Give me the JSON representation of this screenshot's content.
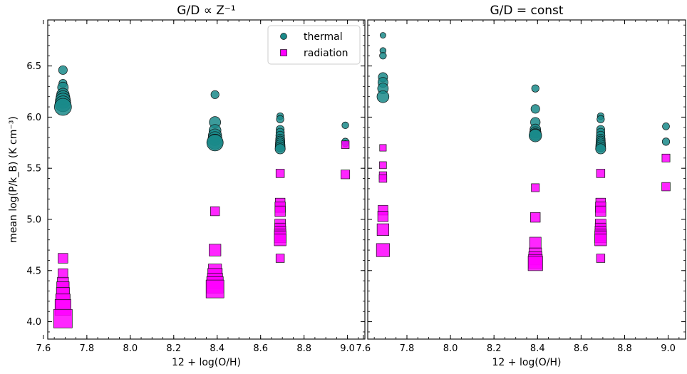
{
  "chart_data": [
    {
      "type": "scatter",
      "title": "G/D ∝ Z⁻¹",
      "xlabel": "12 + log(O/H)",
      "ylabel": "mean log(P/k_B) (K cm⁻³)",
      "xlim": [
        7.62,
        9.08
      ],
      "ylim": [
        3.83,
        6.95
      ],
      "xticks": [
        7.6,
        7.8,
        8.0,
        8.2,
        8.4,
        8.6,
        8.8,
        9.0
      ],
      "xtick_labels": [
        "7.6",
        "7.8",
        "8.0",
        "8.2",
        "8.4",
        "8.6",
        "8.8",
        "9.0"
      ],
      "yticks": [
        4.0,
        4.5,
        5.0,
        5.5,
        6.0,
        6.5
      ],
      "ytick_labels": [
        "4.0",
        "4.5",
        "5.0",
        "5.5",
        "6.0",
        "6.5"
      ],
      "legend": {
        "placement": "top-right",
        "entries": [
          "thermal",
          "radiation"
        ]
      },
      "series": [
        {
          "name": "thermal",
          "marker": "circle",
          "color": "#1a8a8a",
          "points": [
            {
              "x": 7.69,
              "y": 6.46,
              "s": 0.35
            },
            {
              "x": 7.69,
              "y": 6.33,
              "s": 0.3
            },
            {
              "x": 7.69,
              "y": 6.29,
              "s": 0.5
            },
            {
              "x": 7.69,
              "y": 6.22,
              "s": 0.65
            },
            {
              "x": 7.69,
              "y": 6.19,
              "s": 0.75
            },
            {
              "x": 7.69,
              "y": 6.16,
              "s": 0.85
            },
            {
              "x": 7.69,
              "y": 6.13,
              "s": 0.9
            },
            {
              "x": 7.69,
              "y": 6.1,
              "s": 1.0
            },
            {
              "x": 8.39,
              "y": 6.22,
              "s": 0.3
            },
            {
              "x": 8.39,
              "y": 5.95,
              "s": 0.55
            },
            {
              "x": 8.39,
              "y": 5.87,
              "s": 0.6
            },
            {
              "x": 8.39,
              "y": 5.82,
              "s": 0.7
            },
            {
              "x": 8.39,
              "y": 5.79,
              "s": 0.75
            },
            {
              "x": 8.39,
              "y": 5.76,
              "s": 0.85
            },
            {
              "x": 8.39,
              "y": 5.75,
              "s": 0.95
            },
            {
              "x": 8.69,
              "y": 6.01,
              "s": 0.2
            },
            {
              "x": 8.69,
              "y": 5.98,
              "s": 0.25
            },
            {
              "x": 8.69,
              "y": 5.88,
              "s": 0.3
            },
            {
              "x": 8.69,
              "y": 5.85,
              "s": 0.32
            },
            {
              "x": 8.69,
              "y": 5.82,
              "s": 0.34
            },
            {
              "x": 8.69,
              "y": 5.79,
              "s": 0.36
            },
            {
              "x": 8.69,
              "y": 5.77,
              "s": 0.38
            },
            {
              "x": 8.69,
              "y": 5.75,
              "s": 0.4
            },
            {
              "x": 8.69,
              "y": 5.73,
              "s": 0.42
            },
            {
              "x": 8.69,
              "y": 5.71,
              "s": 0.44
            },
            {
              "x": 8.69,
              "y": 5.69,
              "s": 0.46
            },
            {
              "x": 8.99,
              "y": 5.92,
              "s": 0.2
            },
            {
              "x": 8.99,
              "y": 5.76,
              "s": 0.22
            },
            {
              "x": 8.99,
              "y": 5.74,
              "s": 0.15
            }
          ]
        },
        {
          "name": "radiation",
          "marker": "square",
          "color": "#ff00ff",
          "points": [
            {
              "x": 7.69,
              "y": 4.62,
              "s": 0.35
            },
            {
              "x": 7.69,
              "y": 4.47,
              "s": 0.35
            },
            {
              "x": 7.69,
              "y": 4.38,
              "s": 0.45
            },
            {
              "x": 7.69,
              "y": 4.33,
              "s": 0.55
            },
            {
              "x": 7.69,
              "y": 4.27,
              "s": 0.6
            },
            {
              "x": 7.69,
              "y": 4.2,
              "s": 0.7
            },
            {
              "x": 7.69,
              "y": 4.14,
              "s": 0.8
            },
            {
              "x": 7.69,
              "y": 4.03,
              "s": 1.0
            },
            {
              "x": 8.39,
              "y": 5.08,
              "s": 0.3
            },
            {
              "x": 8.39,
              "y": 4.7,
              "s": 0.5
            },
            {
              "x": 8.39,
              "y": 4.5,
              "s": 0.6
            },
            {
              "x": 8.39,
              "y": 4.45,
              "s": 0.7
            },
            {
              "x": 8.39,
              "y": 4.4,
              "s": 0.75
            },
            {
              "x": 8.39,
              "y": 4.36,
              "s": 0.85
            },
            {
              "x": 8.39,
              "y": 4.32,
              "s": 0.95
            },
            {
              "x": 8.69,
              "y": 5.45,
              "s": 0.25
            },
            {
              "x": 8.69,
              "y": 5.16,
              "s": 0.35
            },
            {
              "x": 8.69,
              "y": 5.12,
              "s": 0.4
            },
            {
              "x": 8.69,
              "y": 5.08,
              "s": 0.4
            },
            {
              "x": 8.69,
              "y": 4.95,
              "s": 0.42
            },
            {
              "x": 8.69,
              "y": 4.91,
              "s": 0.44
            },
            {
              "x": 8.69,
              "y": 4.88,
              "s": 0.46
            },
            {
              "x": 8.69,
              "y": 4.85,
              "s": 0.48
            },
            {
              "x": 8.69,
              "y": 4.83,
              "s": 0.5
            },
            {
              "x": 8.69,
              "y": 4.8,
              "s": 0.5
            },
            {
              "x": 8.69,
              "y": 4.62,
              "s": 0.25
            },
            {
              "x": 8.99,
              "y": 5.73,
              "s": 0.2
            },
            {
              "x": 8.99,
              "y": 5.44,
              "s": 0.28
            }
          ]
        }
      ]
    },
    {
      "type": "scatter",
      "title": "G/D = const",
      "xlabel": "12 + log(O/H)",
      "ylabel": "",
      "xlim": [
        7.62,
        9.08
      ],
      "ylim": [
        3.83,
        6.95
      ],
      "xticks": [
        7.6,
        7.8,
        8.0,
        8.2,
        8.4,
        8.6,
        8.8,
        9.0
      ],
      "xtick_labels": [
        "7.6",
        "7.8",
        "8.0",
        "8.2",
        "8.4",
        "8.6",
        "8.8",
        "9.0"
      ],
      "yticks": [
        4.0,
        4.5,
        5.0,
        5.5,
        6.0,
        6.5
      ],
      "ytick_labels": [],
      "series": [
        {
          "name": "thermal",
          "marker": "circle",
          "color": "#1a8a8a",
          "points": [
            {
              "x": 7.69,
              "y": 6.8,
              "s": 0.12
            },
            {
              "x": 7.69,
              "y": 6.65,
              "s": 0.15
            },
            {
              "x": 7.69,
              "y": 6.6,
              "s": 0.2
            },
            {
              "x": 7.69,
              "y": 6.39,
              "s": 0.4
            },
            {
              "x": 7.69,
              "y": 6.34,
              "s": 0.45
            },
            {
              "x": 7.69,
              "y": 6.28,
              "s": 0.5
            },
            {
              "x": 7.69,
              "y": 6.2,
              "s": 0.6
            },
            {
              "x": 8.39,
              "y": 6.28,
              "s": 0.25
            },
            {
              "x": 8.39,
              "y": 6.08,
              "s": 0.35
            },
            {
              "x": 8.39,
              "y": 5.95,
              "s": 0.42
            },
            {
              "x": 8.39,
              "y": 5.88,
              "s": 0.5
            },
            {
              "x": 8.39,
              "y": 5.85,
              "s": 0.55
            },
            {
              "x": 8.39,
              "y": 5.83,
              "s": 0.6
            },
            {
              "x": 8.39,
              "y": 5.82,
              "s": 0.65
            },
            {
              "x": 8.69,
              "y": 6.01,
              "s": 0.2
            },
            {
              "x": 8.69,
              "y": 5.98,
              "s": 0.25
            },
            {
              "x": 8.69,
              "y": 5.88,
              "s": 0.3
            },
            {
              "x": 8.69,
              "y": 5.85,
              "s": 0.32
            },
            {
              "x": 8.69,
              "y": 5.82,
              "s": 0.34
            },
            {
              "x": 8.69,
              "y": 5.79,
              "s": 0.36
            },
            {
              "x": 8.69,
              "y": 5.77,
              "s": 0.38
            },
            {
              "x": 8.69,
              "y": 5.75,
              "s": 0.4
            },
            {
              "x": 8.69,
              "y": 5.73,
              "s": 0.42
            },
            {
              "x": 8.69,
              "y": 5.71,
              "s": 0.44
            },
            {
              "x": 8.69,
              "y": 5.69,
              "s": 0.46
            },
            {
              "x": 8.99,
              "y": 5.91,
              "s": 0.22
            },
            {
              "x": 8.99,
              "y": 5.76,
              "s": 0.25
            }
          ]
        },
        {
          "name": "radiation",
          "marker": "square",
          "color": "#ff00ff",
          "points": [
            {
              "x": 7.69,
              "y": 5.7,
              "s": 0.12
            },
            {
              "x": 7.69,
              "y": 5.53,
              "s": 0.15
            },
            {
              "x": 7.69,
              "y": 5.43,
              "s": 0.18
            },
            {
              "x": 7.69,
              "y": 5.4,
              "s": 0.2
            },
            {
              "x": 7.69,
              "y": 5.09,
              "s": 0.35
            },
            {
              "x": 7.69,
              "y": 5.03,
              "s": 0.4
            },
            {
              "x": 7.69,
              "y": 4.9,
              "s": 0.5
            },
            {
              "x": 7.69,
              "y": 4.7,
              "s": 0.6
            },
            {
              "x": 8.39,
              "y": 5.31,
              "s": 0.22
            },
            {
              "x": 8.39,
              "y": 5.02,
              "s": 0.35
            },
            {
              "x": 8.39,
              "y": 4.77,
              "s": 0.48
            },
            {
              "x": 8.39,
              "y": 4.66,
              "s": 0.55
            },
            {
              "x": 8.39,
              "y": 4.62,
              "s": 0.6
            },
            {
              "x": 8.39,
              "y": 4.59,
              "s": 0.65
            },
            {
              "x": 8.39,
              "y": 4.57,
              "s": 0.7
            },
            {
              "x": 8.69,
              "y": 5.45,
              "s": 0.25
            },
            {
              "x": 8.69,
              "y": 5.16,
              "s": 0.35
            },
            {
              "x": 8.69,
              "y": 5.12,
              "s": 0.4
            },
            {
              "x": 8.69,
              "y": 5.08,
              "s": 0.4
            },
            {
              "x": 8.69,
              "y": 4.95,
              "s": 0.42
            },
            {
              "x": 8.69,
              "y": 4.91,
              "s": 0.44
            },
            {
              "x": 8.69,
              "y": 4.88,
              "s": 0.46
            },
            {
              "x": 8.69,
              "y": 4.85,
              "s": 0.48
            },
            {
              "x": 8.69,
              "y": 4.83,
              "s": 0.5
            },
            {
              "x": 8.69,
              "y": 4.8,
              "s": 0.5
            },
            {
              "x": 8.69,
              "y": 4.62,
              "s": 0.25
            },
            {
              "x": 8.99,
              "y": 5.6,
              "s": 0.22
            },
            {
              "x": 8.99,
              "y": 5.32,
              "s": 0.25
            }
          ]
        }
      ]
    }
  ]
}
